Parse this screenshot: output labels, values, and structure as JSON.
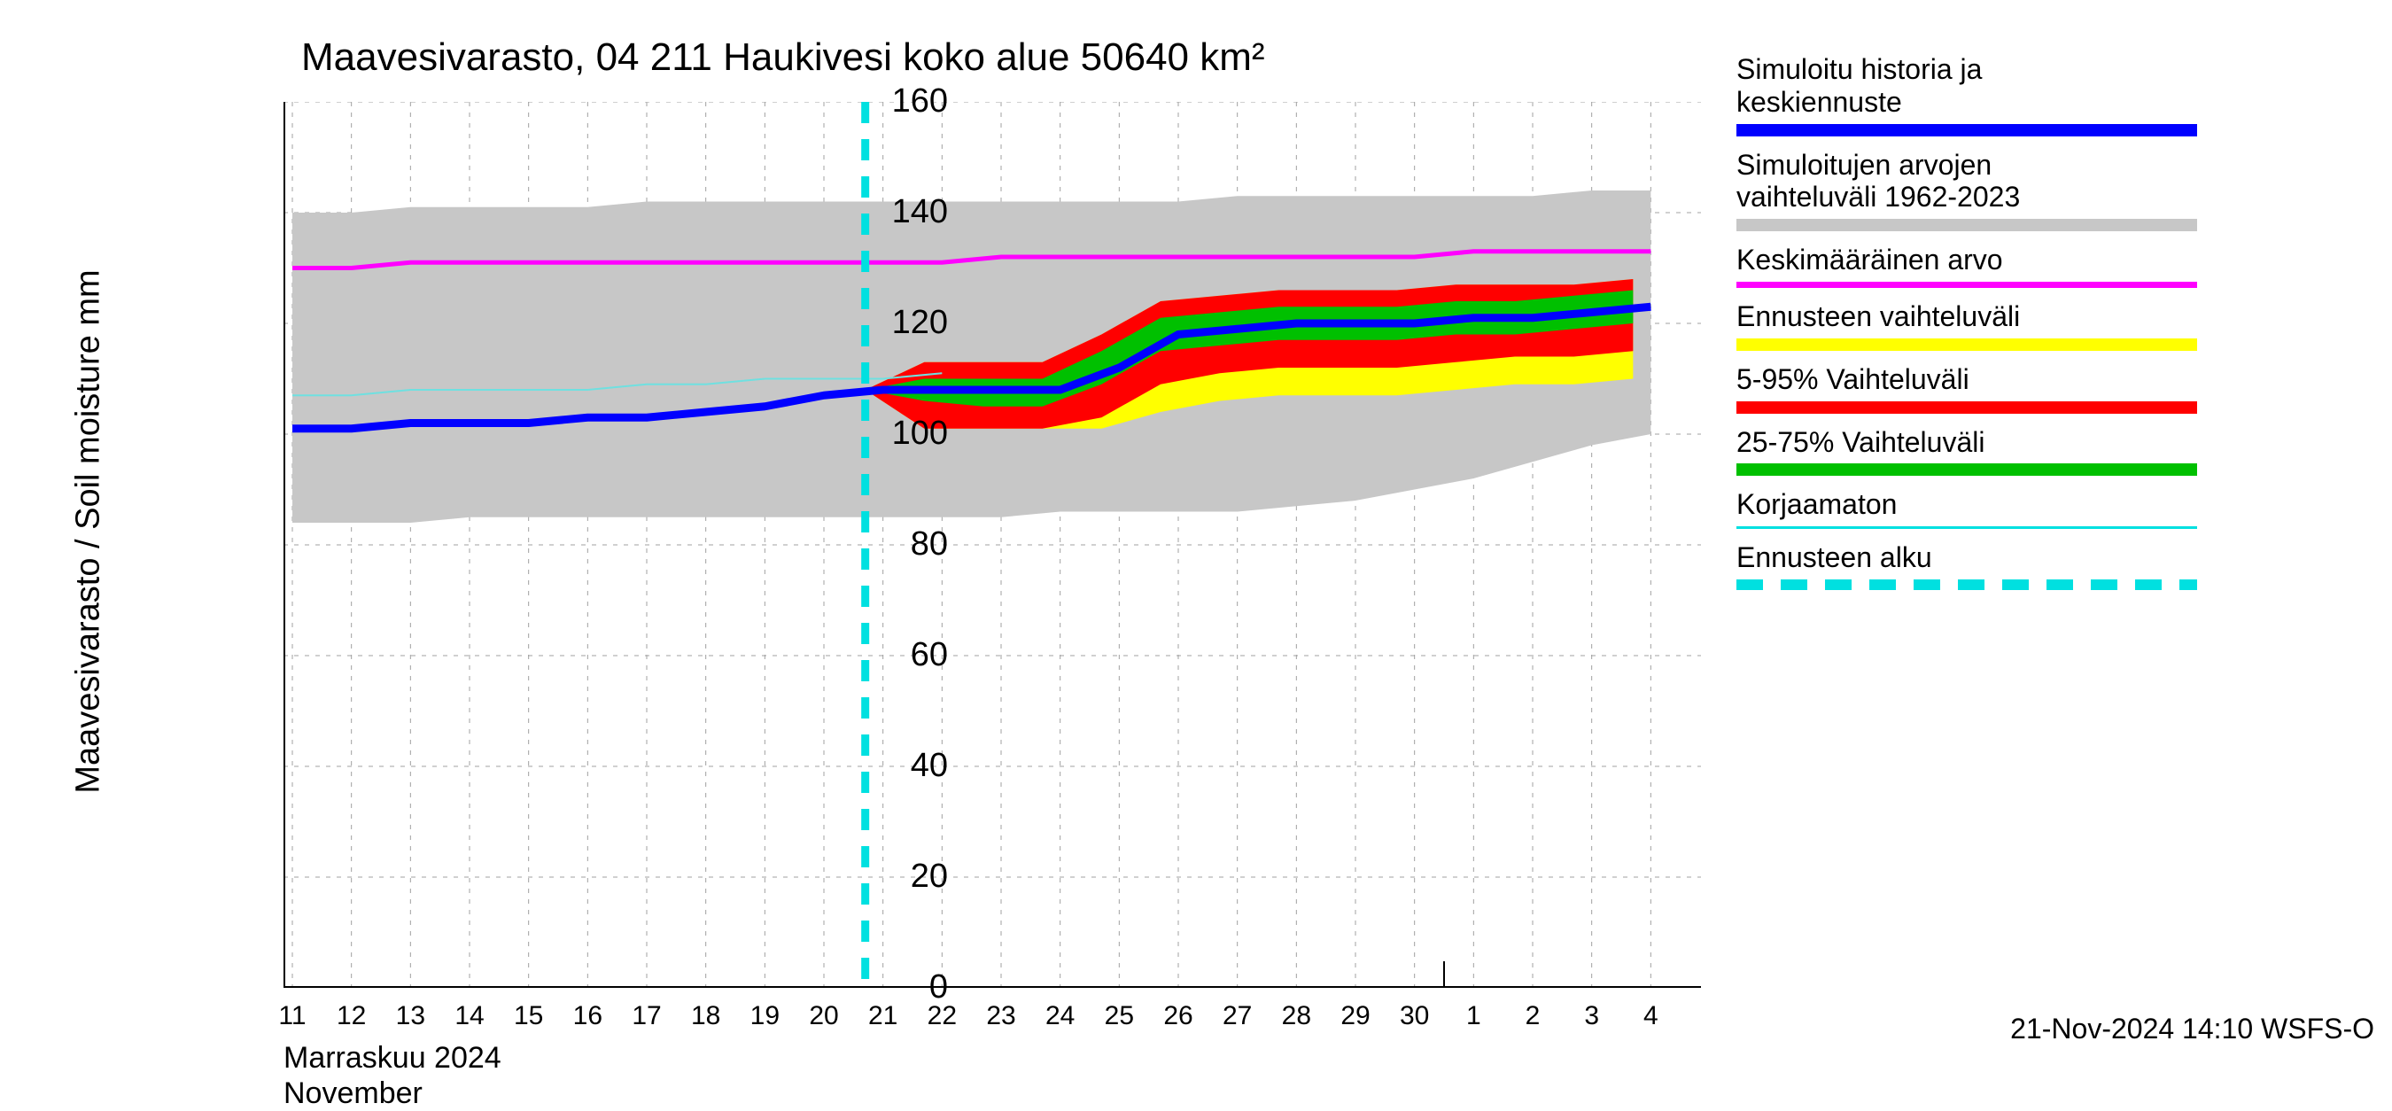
{
  "title": "Maavesivarasto, 04 211 Haukivesi koko alue 50640 km²",
  "ylabel": "Maavesivarasto / Soil moisture    mm",
  "timestamp": "21-Nov-2024 14:10 WSFS-O",
  "x_month_fi": "Marraskuu 2024",
  "x_month_en": "November",
  "chart": {
    "type": "line-area",
    "background_color": "#ffffff",
    "grid_color": "#a0a0a0",
    "axis_color": "#000000",
    "ylim": [
      0,
      160
    ],
    "yticks": [
      0,
      20,
      40,
      60,
      80,
      100,
      120,
      140,
      160
    ],
    "xticks": [
      "11",
      "12",
      "13",
      "14",
      "15",
      "16",
      "17",
      "18",
      "19",
      "20",
      "21",
      "22",
      "23",
      "24",
      "25",
      "26",
      "27",
      "28",
      "29",
      "30",
      "1",
      "2",
      "3",
      "4"
    ],
    "forecast_start_idx": 9.7,
    "month_divider_idx": 20,
    "line_colors": {
      "main_blue": "#0000ff",
      "mean_magenta": "#ff00ff",
      "uncorrected_cyan": "#6fe0e0",
      "forecast_start_dash": "#00e0e0"
    },
    "band_colors": {
      "history_gray": "#c7c7c7",
      "forecast_outer_yellow": "#ffff00",
      "ci90_red": "#ff0000",
      "ci50_green": "#00c000"
    },
    "line_widths": {
      "main_blue": 9,
      "mean_magenta": 5,
      "uncorrected_cyan": 2,
      "dash_width": 9
    },
    "series": {
      "history_gray_upper": [
        140,
        140,
        141,
        141,
        141,
        141,
        142,
        142,
        142,
        142,
        142,
        142,
        142,
        142,
        142,
        142,
        143,
        143,
        143,
        143,
        143,
        143,
        144,
        144
      ],
      "history_gray_lower": [
        84,
        84,
        84,
        85,
        85,
        85,
        85,
        85,
        85,
        85,
        85,
        85,
        85,
        86,
        86,
        86,
        86,
        87,
        88,
        90,
        92,
        95,
        98,
        100
      ],
      "mean_magenta": [
        130,
        130,
        131,
        131,
        131,
        131,
        131,
        131,
        131,
        131,
        131,
        131,
        132,
        132,
        132,
        132,
        132,
        132,
        132,
        132,
        133,
        133,
        133,
        133
      ],
      "uncorrected_cyan": [
        107,
        107,
        108,
        108,
        108,
        108,
        109,
        109,
        110,
        110,
        110,
        111
      ],
      "main_blue": [
        101,
        101,
        102,
        102,
        102,
        103,
        103,
        104,
        105,
        107,
        108,
        108,
        108,
        108,
        112,
        118,
        119,
        120,
        120,
        120,
        121,
        121,
        122,
        123
      ],
      "ci50_green_upper": [
        108,
        110,
        110,
        110,
        115,
        121,
        122,
        123,
        123,
        123,
        124,
        124,
        125,
        126
      ],
      "ci50_green_lower": [
        108,
        106,
        105,
        105,
        109,
        115,
        116,
        117,
        117,
        117,
        118,
        118,
        119,
        120
      ],
      "ci90_red_upper": [
        108,
        113,
        113,
        113,
        118,
        124,
        125,
        126,
        126,
        126,
        127,
        127,
        127,
        128
      ],
      "ci90_red_lower": [
        108,
        101,
        101,
        101,
        103,
        109,
        111,
        112,
        112,
        112,
        113,
        114,
        114,
        115
      ],
      "forecast_yellow_upper": [
        108,
        113,
        113,
        113,
        118,
        124,
        125,
        126,
        126,
        126,
        127,
        127,
        127,
        128
      ],
      "forecast_yellow_lower": [
        108,
        101,
        101,
        101,
        101,
        104,
        106,
        107,
        107,
        107,
        108,
        109,
        109,
        110
      ]
    }
  },
  "legend": [
    {
      "label": "Simuloitu historia ja\nkeskiennuste",
      "swatch_class": "blue"
    },
    {
      "label": "Simuloitujen arvojen\nvaihteluväli 1962-2023",
      "swatch_class": "gray"
    },
    {
      "label": "Keskimääräinen arvo",
      "swatch_class": "magenta"
    },
    {
      "label": "Ennusteen vaihteluväli",
      "swatch_class": "yellow"
    },
    {
      "label": "5-95% Vaihteluväli",
      "swatch_class": "red"
    },
    {
      "label": "25-75% Vaihteluväli",
      "swatch_class": "green"
    },
    {
      "label": "Korjaamaton",
      "swatch_class": "thin-cyan"
    },
    {
      "label": "Ennusteen alku",
      "swatch_class": "dashed-cyan"
    }
  ]
}
